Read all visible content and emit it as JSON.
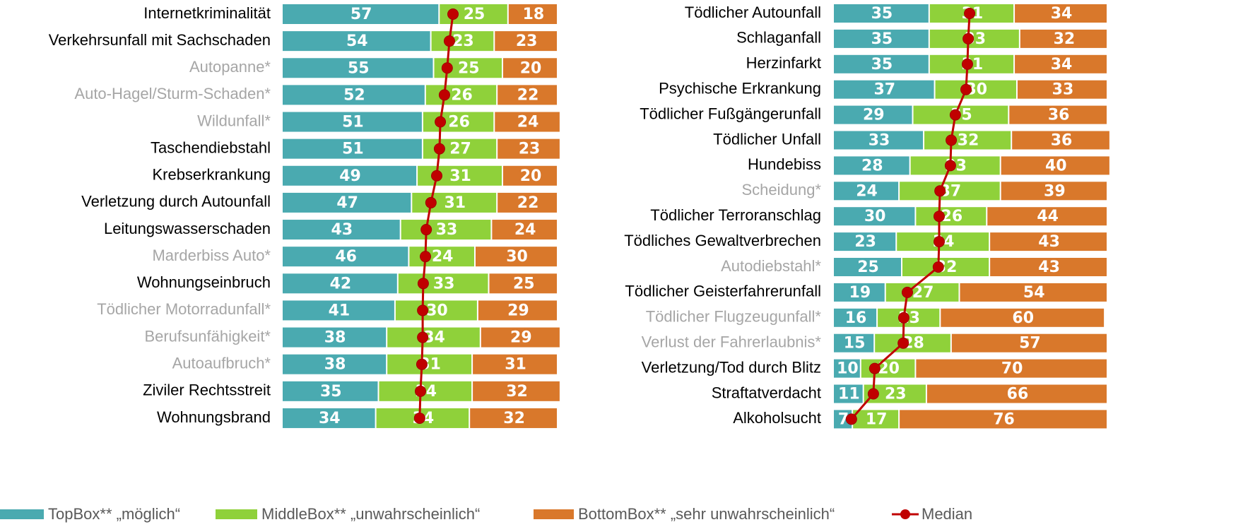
{
  "chart_data": [
    {
      "type": "bar",
      "orientation": "horizontal",
      "stacked": true,
      "categories": [
        "Internetkriminalität",
        "Verkehrsunfall mit Sachschaden",
        "Autopanne*",
        "Auto-Hagel/Sturm-Schaden*",
        "Wildunfall*",
        "Taschendiebstahl",
        "Krebserkrankung",
        "Verletzung durch Autounfall",
        "Leitungswasserschaden",
        "Marderbiss Auto*",
        "Wohnungseinbruch",
        "Tödlicher Motorradunfall*",
        "Berufsunfähigkeit*",
        "Autoaufbruch*",
        "Ziviler Rechtsstreit",
        "Wohnungsbrand"
      ],
      "xlim": [
        0,
        100
      ],
      "series": [
        {
          "name": "TopBox** „möglich“",
          "color": "#4aaab0",
          "values": [
            57,
            54,
            55,
            52,
            51,
            51,
            49,
            47,
            43,
            46,
            42,
            41,
            38,
            38,
            35,
            34
          ]
        },
        {
          "name": "MiddleBox** „unwahrscheinlich“",
          "color": "#8fd13a",
          "values": [
            25,
            23,
            25,
            26,
            26,
            27,
            31,
            31,
            33,
            24,
            33,
            30,
            34,
            31,
            34,
            34
          ]
        },
        {
          "name": "BottomBox** „sehr unwahrscheinlich“",
          "color": "#d9782b",
          "values": [
            18,
            23,
            20,
            22,
            24,
            23,
            20,
            22,
            24,
            30,
            25,
            29,
            29,
            31,
            32,
            32
          ]
        },
        {
          "name": "Median",
          "type": "line",
          "color": "#c00000",
          "values": [
            61.8,
            60.5,
            59.7,
            58.7,
            57.2,
            56.9,
            55.9,
            53.8,
            52.1,
            51.8,
            51.0,
            50.8,
            50.8,
            50.5,
            50.0,
            49.7
          ]
        }
      ]
    },
    {
      "type": "bar",
      "orientation": "horizontal",
      "stacked": true,
      "categories": [
        "Tödlicher Autounfall",
        "Schlaganfall",
        "Herzinfarkt",
        "Psychische Erkrankung",
        "Tödlicher Fußgängerunfall",
        "Tödlicher Unfall",
        "Hundebiss",
        "Scheidung*",
        "Tödlicher Terroranschlag",
        "Tödliches Gewaltverbrechen",
        "Autodiebstahl*",
        "Tödlicher Geisterfahrerunfall",
        "Tödlicher Flugzeugunfall*",
        "Verlust der Fahrerlaubnis*",
        "Verletzung/Tod durch Blitz",
        "Straftatverdacht",
        "Alkoholsucht"
      ],
      "xlim": [
        0,
        100
      ],
      "series": [
        {
          "color": "#4aaab0",
          "values": [
            35,
            35,
            35,
            37,
            29,
            33,
            28,
            24,
            30,
            23,
            25,
            19,
            16,
            15,
            10,
            11,
            7
          ]
        },
        {
          "color": "#8fd13a",
          "values": [
            31,
            33,
            31,
            30,
            35,
            32,
            33,
            37,
            26,
            34,
            32,
            27,
            23,
            28,
            20,
            23,
            17
          ]
        },
        {
          "color": "#d9782b",
          "values": [
            34,
            32,
            34,
            33,
            36,
            36,
            40,
            39,
            44,
            43,
            43,
            54,
            60,
            57,
            70,
            66,
            76
          ]
        },
        {
          "type": "line",
          "color": "#c00000",
          "values": [
            49.5,
            49.0,
            48.7,
            48.2,
            44.3,
            42.8,
            42.5,
            38.7,
            38.4,
            38.4,
            38.1,
            26.8,
            25.5,
            25.3,
            14.9,
            14.4,
            6.4
          ]
        }
      ]
    }
  ]
}
